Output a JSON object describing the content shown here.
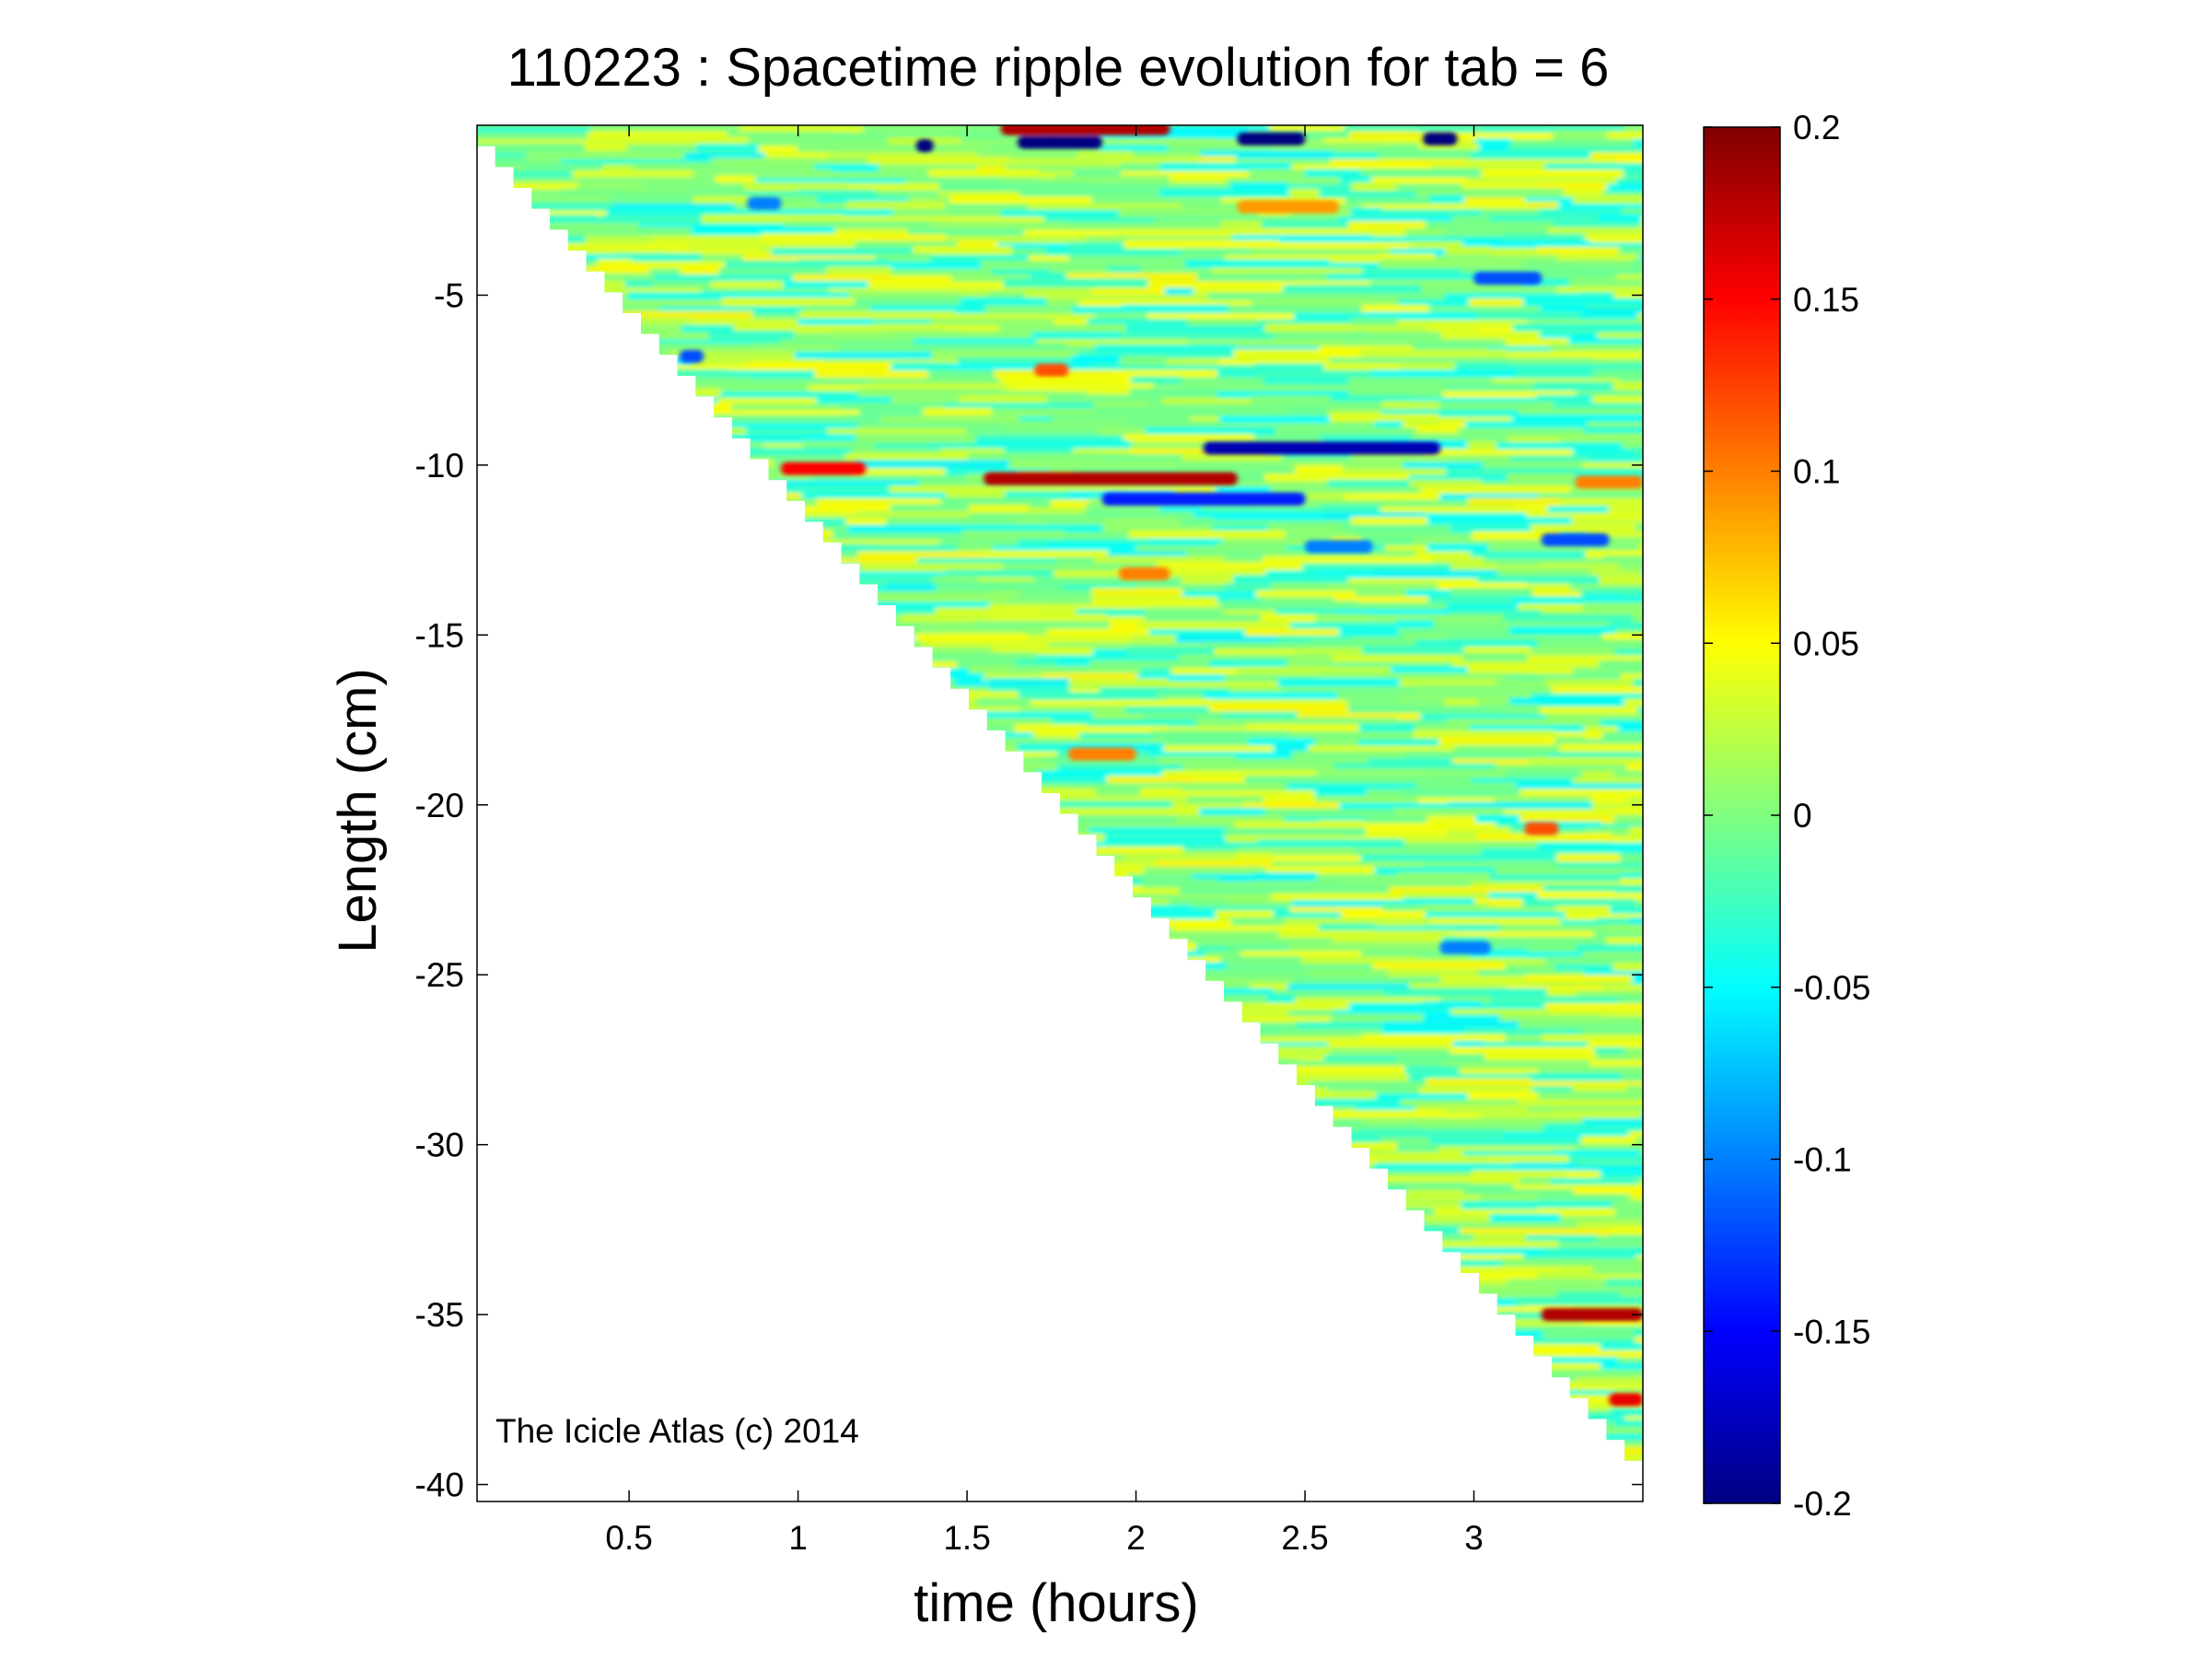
{
  "chart_data": {
    "type": "heatmap",
    "title": "110223 : Spacetime ripple evolution for tab = 6",
    "xlabel": "time (hours)",
    "ylabel": "Length (cm)",
    "xlim": [
      0.05,
      3.5
    ],
    "ylim": [
      -40.5,
      0
    ],
    "xticks": [
      0.5,
      1,
      1.5,
      2,
      2.5,
      3
    ],
    "xtick_labels": [
      "0.5",
      "1",
      "1.5",
      "2",
      "2.5",
      "3"
    ],
    "yticks": [
      -5,
      -10,
      -15,
      -20,
      -25,
      -30,
      -35,
      -40
    ],
    "ytick_labels": [
      "-5",
      "-10",
      "-15",
      "-20",
      "-25",
      "-30",
      "-35",
      "-40"
    ],
    "colorbar": {
      "colormap": "jet",
      "clim": [
        -0.2,
        0.2
      ],
      "ticks": [
        0.2,
        0.15,
        0.1,
        0.05,
        0,
        -0.05,
        -0.1,
        -0.15,
        -0.2
      ],
      "tick_labels": [
        "0.2",
        "0.15",
        "0.1",
        "0.05",
        "0",
        "-0.05",
        "-0.1",
        "-0.15",
        "-0.2"
      ]
    },
    "data_boundary": {
      "description_free_edge": [
        [
          0.05,
          0
        ],
        [
          3.5,
          -39.3
        ]
      ]
    },
    "features": [
      {
        "t_start": 1.55,
        "t_end": 2.3,
        "length": -10.4,
        "value": 0.18
      },
      {
        "t_start": 0.95,
        "t_end": 1.2,
        "length": -10.1,
        "value": 0.15
      },
      {
        "t_start": 2.2,
        "t_end": 2.9,
        "length": -9.5,
        "value": -0.18
      },
      {
        "t_start": 1.9,
        "t_end": 2.5,
        "length": -11.0,
        "value": -0.14
      },
      {
        "t_start": 1.35,
        "t_end": 1.4,
        "length": -0.6,
        "value": -0.2
      },
      {
        "t_start": 1.65,
        "t_end": 1.9,
        "length": -0.5,
        "value": -0.2
      },
      {
        "t_start": 2.3,
        "t_end": 2.5,
        "length": -0.4,
        "value": -0.2
      },
      {
        "t_start": 2.85,
        "t_end": 2.95,
        "length": -0.4,
        "value": -0.2
      },
      {
        "t_start": 1.6,
        "t_end": 2.1,
        "length": -0.1,
        "value": 0.18
      },
      {
        "t_start": 2.3,
        "t_end": 2.6,
        "length": -2.4,
        "value": 0.09
      },
      {
        "t_start": 1.7,
        "t_end": 1.8,
        "length": -7.2,
        "value": 0.12
      },
      {
        "t_start": 1.8,
        "t_end": 2.0,
        "length": -18.5,
        "value": 0.1
      },
      {
        "t_start": 1.95,
        "t_end": 2.1,
        "length": -13.2,
        "value": 0.1
      },
      {
        "t_start": 2.5,
        "t_end": 2.7,
        "length": -12.4,
        "value": -0.1
      },
      {
        "t_start": 3.2,
        "t_end": 3.5,
        "length": -35.0,
        "value": 0.18
      },
      {
        "t_start": 3.4,
        "t_end": 3.5,
        "length": -37.5,
        "value": 0.16
      },
      {
        "t_start": 3.0,
        "t_end": 3.2,
        "length": -4.5,
        "value": -0.12
      },
      {
        "t_start": 3.3,
        "t_end": 3.5,
        "length": -10.5,
        "value": 0.1
      },
      {
        "t_start": 3.2,
        "t_end": 3.4,
        "length": -12.2,
        "value": -0.12
      },
      {
        "t_start": 2.9,
        "t_end": 3.05,
        "length": -24.2,
        "value": -0.1
      },
      {
        "t_start": 3.15,
        "t_end": 3.25,
        "length": -20.7,
        "value": 0.12
      },
      {
        "t_start": 0.65,
        "t_end": 0.72,
        "length": -6.8,
        "value": -0.12
      },
      {
        "t_start": 0.85,
        "t_end": 0.95,
        "length": -2.3,
        "value": -0.1
      }
    ],
    "annotations": [
      "The Icicle Atlas (c) 2014"
    ],
    "grid": false,
    "legend": "colorbar-right"
  }
}
